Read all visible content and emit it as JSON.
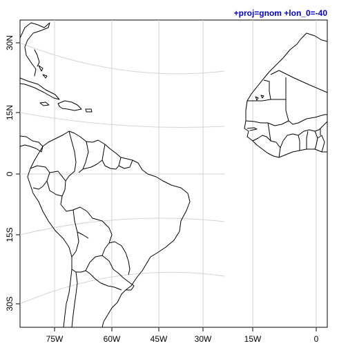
{
  "map": {
    "projection_label": "+proj=gnom +lon_0=-40",
    "title_color": "#0000cc",
    "graticule_color": "#d3d3d3",
    "coastline_color": "#000000",
    "x_ticks": [
      "75W",
      "60W",
      "45W",
      "30W",
      "15W",
      "0"
    ],
    "y_ticks": [
      "30N",
      "15N",
      "0",
      "15S",
      "30S"
    ],
    "regions": [
      "South America",
      "Central America",
      "Caribbean",
      "West Africa"
    ]
  }
}
